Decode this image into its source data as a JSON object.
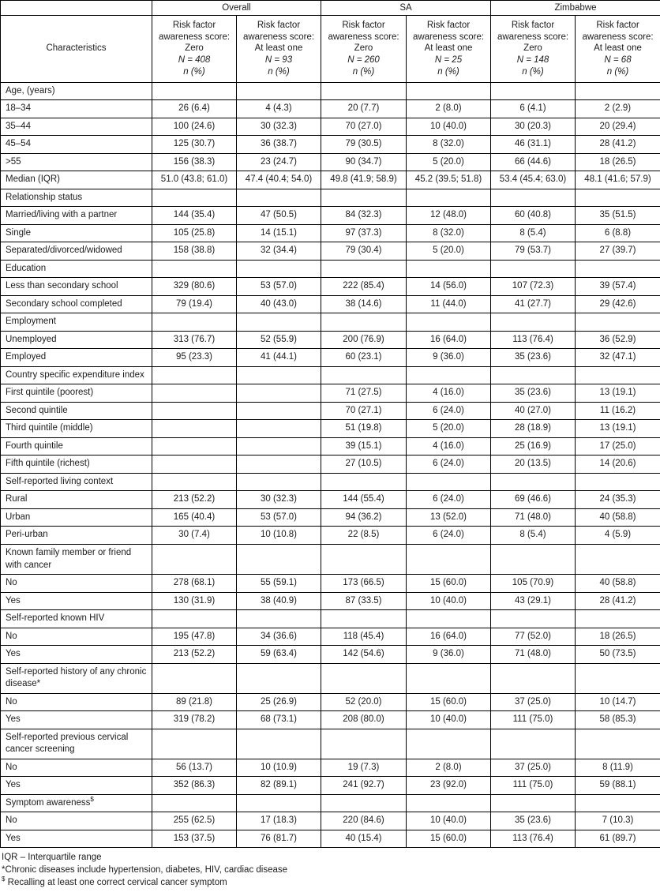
{
  "table": {
    "characteristics_label": "Characteristics",
    "groups": [
      "Overall",
      "SA",
      "Zimbabwe"
    ],
    "columns": [
      {
        "title": "Risk factor awareness score:",
        "score": "Zero",
        "n": "N = 408",
        "unit": "n (%)"
      },
      {
        "title": "Risk factor awareness score:",
        "score": "At least one",
        "n": "N = 93",
        "unit": "n (%)"
      },
      {
        "title": "Risk factor awareness score:",
        "score": "Zero",
        "n": "N = 260",
        "unit": "n (%)"
      },
      {
        "title": "Risk factor awareness score:",
        "score": "At least one",
        "n": "N = 25",
        "unit": "n (%)"
      },
      {
        "title": "Risk factor awareness score:",
        "score": "Zero",
        "n": "N = 148",
        "unit": "n (%)"
      },
      {
        "title": "Risk factor awareness score:",
        "score": "At least one",
        "n": "N = 68",
        "unit": "n (%)"
      }
    ],
    "rows": [
      {
        "type": "section",
        "label": "Age, (years)"
      },
      {
        "type": "data",
        "label": "18–34",
        "values": [
          "26 (6.4)",
          "4 (4.3)",
          "20 (7.7)",
          "2 (8.0)",
          "6 (4.1)",
          "2 (2.9)"
        ]
      },
      {
        "type": "data",
        "label": "35–44",
        "values": [
          "100 (24.6)",
          "30 (32.3)",
          "70 (27.0)",
          "10 (40.0)",
          "30 (20.3)",
          "20 (29.4)"
        ]
      },
      {
        "type": "data",
        "label": "45–54",
        "values": [
          "125 (30.7)",
          "36 (38.7)",
          "79 (30.5)",
          "8 (32.0)",
          "46 (31.1)",
          "28 (41.2)"
        ]
      },
      {
        "type": "data",
        "label": ">55",
        "values": [
          "156 (38.3)",
          "23 (24.7)",
          "90 (34.7)",
          "5 (20.0)",
          "66 (44.6)",
          "18 (26.5)"
        ]
      },
      {
        "type": "data",
        "label": "Median (IQR)",
        "values": [
          "51.0 (43.8; 61.0)",
          "47.4 (40.4; 54.0)",
          "49.8 (41.9; 58.9)",
          "45.2 (39.5; 51.8)",
          "53.4 (45.4; 63.0)",
          "48.1 (41.6; 57.9)"
        ]
      },
      {
        "type": "section",
        "label": "Relationship status"
      },
      {
        "type": "data",
        "label": "Married/living with a partner",
        "values": [
          "144 (35.4)",
          "47 (50.5)",
          "84 (32.3)",
          "12 (48.0)",
          "60 (40.8)",
          "35 (51.5)"
        ]
      },
      {
        "type": "data",
        "label": "Single",
        "values": [
          "105 (25.8)",
          "14 (15.1)",
          "97 (37.3)",
          "8 (32.0)",
          "8 (5.4)",
          "6 (8.8)"
        ]
      },
      {
        "type": "data",
        "label": "Separated/divorced/widowed",
        "values": [
          "158 (38.8)",
          "32 (34.4)",
          "79 (30.4)",
          "5 (20.0)",
          "79 (53.7)",
          "27 (39.7)"
        ]
      },
      {
        "type": "section",
        "label": "Education"
      },
      {
        "type": "data",
        "label": "Less than secondary school",
        "values": [
          "329 (80.6)",
          "53 (57.0)",
          "222 (85.4)",
          "14 (56.0)",
          "107 (72.3)",
          "39 (57.4)"
        ]
      },
      {
        "type": "data",
        "label": "Secondary school completed",
        "values": [
          "79 (19.4)",
          "40 (43.0)",
          "38 (14.6)",
          "11 (44.0)",
          "41 (27.7)",
          "29 (42.6)"
        ]
      },
      {
        "type": "section",
        "label": "Employment"
      },
      {
        "type": "data",
        "label": "Unemployed",
        "values": [
          "313 (76.7)",
          "52 (55.9)",
          "200 (76.9)",
          "16 (64.0)",
          "113 (76.4)",
          "36 (52.9)"
        ]
      },
      {
        "type": "data",
        "label": "Employed",
        "values": [
          "95 (23.3)",
          "41 (44.1)",
          "60 (23.1)",
          "9 (36.0)",
          "35 (23.6)",
          "32 (47.1)"
        ]
      },
      {
        "type": "section",
        "label": "Country specific expenditure index"
      },
      {
        "type": "data",
        "label": "First quintile (poorest)",
        "values": [
          "",
          "",
          "71 (27.5)",
          "4 (16.0)",
          "35 (23.6)",
          "13 (19.1)"
        ]
      },
      {
        "type": "data",
        "label": "Second quintile",
        "values": [
          "",
          "",
          "70 (27.1)",
          "6 (24.0)",
          "40 (27.0)",
          "11 (16.2)"
        ]
      },
      {
        "type": "data",
        "label": "Third quintile (middle)",
        "values": [
          "",
          "",
          "51 (19.8)",
          "5 (20.0)",
          "28 (18.9)",
          "13 (19.1)"
        ]
      },
      {
        "type": "data",
        "label": "Fourth quintile",
        "values": [
          "",
          "",
          "39 (15.1)",
          "4 (16.0)",
          "25 (16.9)",
          "17 (25.0)"
        ]
      },
      {
        "type": "data",
        "label": "Fifth quintile (richest)",
        "values": [
          "",
          "",
          "27 (10.5)",
          "6 (24.0)",
          "20 (13.5)",
          "14 (20.6)"
        ]
      },
      {
        "type": "section",
        "label": "Self-reported living context"
      },
      {
        "type": "data",
        "label": "Rural",
        "values": [
          "213 (52.2)",
          "30 (32.3)",
          "144 (55.4)",
          "6 (24.0)",
          "69 (46.6)",
          "24 (35.3)"
        ]
      },
      {
        "type": "data",
        "label": "Urban",
        "values": [
          "165 (40.4)",
          "53 (57.0)",
          "94 (36.2)",
          "13 (52.0)",
          "71 (48.0)",
          "40 (58.8)"
        ]
      },
      {
        "type": "data",
        "label": "Peri-urban",
        "values": [
          "30 (7.4)",
          "10 (10.8)",
          "22 (8.5)",
          "6 (24.0)",
          "8 (5.4)",
          "4 (5.9)"
        ]
      },
      {
        "type": "section",
        "label": "Known family member or friend with cancer"
      },
      {
        "type": "data",
        "label": "No",
        "values": [
          "278 (68.1)",
          "55 (59.1)",
          "173 (66.5)",
          "15 (60.0)",
          "105 (70.9)",
          "40 (58.8)"
        ]
      },
      {
        "type": "data",
        "label": "Yes",
        "values": [
          "130 (31.9)",
          "38 (40.9)",
          "87 (33.5)",
          "10 (40.0)",
          "43 (29.1)",
          "28 (41.2)"
        ]
      },
      {
        "type": "section",
        "label": "Self-reported known HIV"
      },
      {
        "type": "data",
        "label": "No",
        "values": [
          "195 (47.8)",
          "34 (36.6)",
          "118 (45.4)",
          "16 (64.0)",
          "77 (52.0)",
          "18 (26.5)"
        ]
      },
      {
        "type": "data",
        "label": "Yes",
        "values": [
          "213 (52.2)",
          "59 (63.4)",
          "142 (54.6)",
          "9 (36.0)",
          "71 (48.0)",
          "50 (73.5)"
        ]
      },
      {
        "type": "section",
        "label": "Self-reported history of any chronic disease*"
      },
      {
        "type": "data",
        "label": "No",
        "values": [
          "89 (21.8)",
          "25 (26.9)",
          "52 (20.0)",
          "15 (60.0)",
          "37 (25.0)",
          "10 (14.7)"
        ]
      },
      {
        "type": "data",
        "label": "Yes",
        "values": [
          "319 (78.2)",
          "68 (73.1)",
          "208 (80.0)",
          "10 (40.0)",
          "111 (75.0)",
          "58 (85.3)"
        ]
      },
      {
        "type": "section",
        "label": "Self-reported previous cervical cancer screening"
      },
      {
        "type": "data",
        "label": "No",
        "values": [
          "56 (13.7)",
          "10 (10.9)",
          "19 (7.3)",
          "2 (8.0)",
          "37 (25.0)",
          "8 (11.9)"
        ]
      },
      {
        "type": "data",
        "label": "Yes",
        "values": [
          "352 (86.3)",
          "82 (89.1)",
          "241 (92.7)",
          "23 (92.0)",
          "111 (75.0)",
          "59 (88.1)"
        ]
      },
      {
        "type": "section",
        "label": "Symptom awareness",
        "sup": "$"
      },
      {
        "type": "data",
        "label": "No",
        "values": [
          "255 (62.5)",
          "17 (18.3)",
          "220 (84.6)",
          "10 (40.0)",
          "35 (23.6)",
          "7 (10.3)"
        ]
      },
      {
        "type": "data",
        "label": "Yes",
        "values": [
          "153 (37.5)",
          "76 (81.7)",
          "40 (15.4)",
          "15 (60.0)",
          "113 (76.4)",
          "61 (89.7)"
        ]
      }
    ],
    "footnotes": [
      {
        "text": "IQR – Interquartile range"
      },
      {
        "text": "*Chronic diseases include hypertension, diabetes, HIV, cardiac disease"
      },
      {
        "sup": "$",
        "text": " Recalling at least one correct cervical cancer symptom"
      }
    ]
  }
}
